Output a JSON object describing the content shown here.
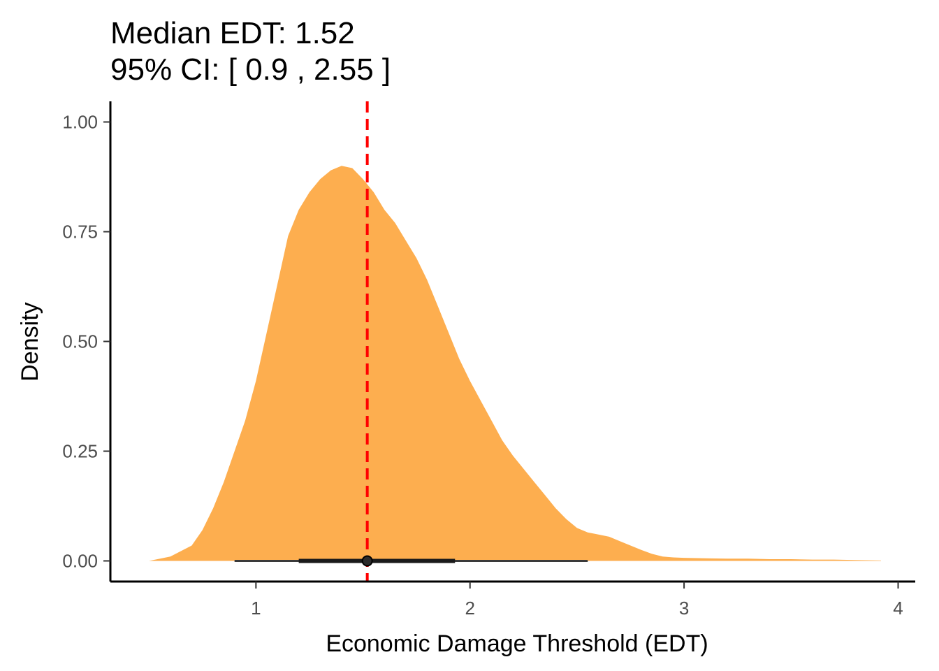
{
  "chart_data": {
    "type": "area",
    "title_lines": [
      "Median EDT: 1.52",
      "95% CI: [ 0.9 ,  2.55 ]"
    ],
    "xlabel": "Economic Damage Threshold (EDT)",
    "ylabel": "Density",
    "xlim": [
      0.32,
      4.08
    ],
    "ylim": [
      -0.047,
      1.047
    ],
    "x_ticks": [
      {
        "value": 1,
        "label": "1"
      },
      {
        "value": 2,
        "label": "2"
      },
      {
        "value": 3,
        "label": "3"
      },
      {
        "value": 4,
        "label": "4"
      }
    ],
    "y_ticks": [
      {
        "value": 0,
        "label": "0.00"
      },
      {
        "value": 0.25,
        "label": "0.25"
      },
      {
        "value": 0.5,
        "label": "0.50"
      },
      {
        "value": 0.75,
        "label": "0.75"
      },
      {
        "value": 1,
        "label": "1.00"
      }
    ],
    "grid": false,
    "series": [
      {
        "fill_color": "#FDAE4F",
        "x": [
          0.5,
          0.6,
          0.7,
          0.75,
          0.8,
          0.85,
          0.9,
          0.95,
          1.0,
          1.05,
          1.1,
          1.15,
          1.2,
          1.25,
          1.3,
          1.35,
          1.4,
          1.45,
          1.5,
          1.55,
          1.6,
          1.65,
          1.7,
          1.75,
          1.8,
          1.85,
          1.9,
          1.95,
          2.0,
          2.05,
          2.1,
          2.15,
          2.2,
          2.25,
          2.3,
          2.35,
          2.4,
          2.45,
          2.5,
          2.55,
          2.6,
          2.65,
          2.7,
          2.75,
          2.8,
          2.85,
          2.9,
          2.95,
          3.0,
          3.1,
          3.2,
          3.3,
          3.4,
          3.5,
          3.6,
          3.7,
          3.8,
          3.92
        ],
        "y": [
          0.0,
          0.01,
          0.035,
          0.07,
          0.12,
          0.18,
          0.25,
          0.32,
          0.41,
          0.52,
          0.63,
          0.74,
          0.8,
          0.84,
          0.87,
          0.89,
          0.9,
          0.895,
          0.87,
          0.84,
          0.8,
          0.77,
          0.73,
          0.69,
          0.64,
          0.58,
          0.52,
          0.46,
          0.41,
          0.365,
          0.32,
          0.275,
          0.24,
          0.21,
          0.18,
          0.15,
          0.12,
          0.095,
          0.075,
          0.065,
          0.06,
          0.055,
          0.045,
          0.035,
          0.025,
          0.016,
          0.01,
          0.008,
          0.007,
          0.006,
          0.005,
          0.005,
          0.004,
          0.004,
          0.003,
          0.003,
          0.002,
          0.001
        ]
      }
    ],
    "median_line": {
      "x": 1.52,
      "color": "#FF0000",
      "style": "dashed"
    },
    "point_interval": {
      "point": 1.52,
      "inner": [
        1.2,
        1.93
      ],
      "outer": [
        0.9,
        2.55
      ],
      "y": 0
    }
  }
}
